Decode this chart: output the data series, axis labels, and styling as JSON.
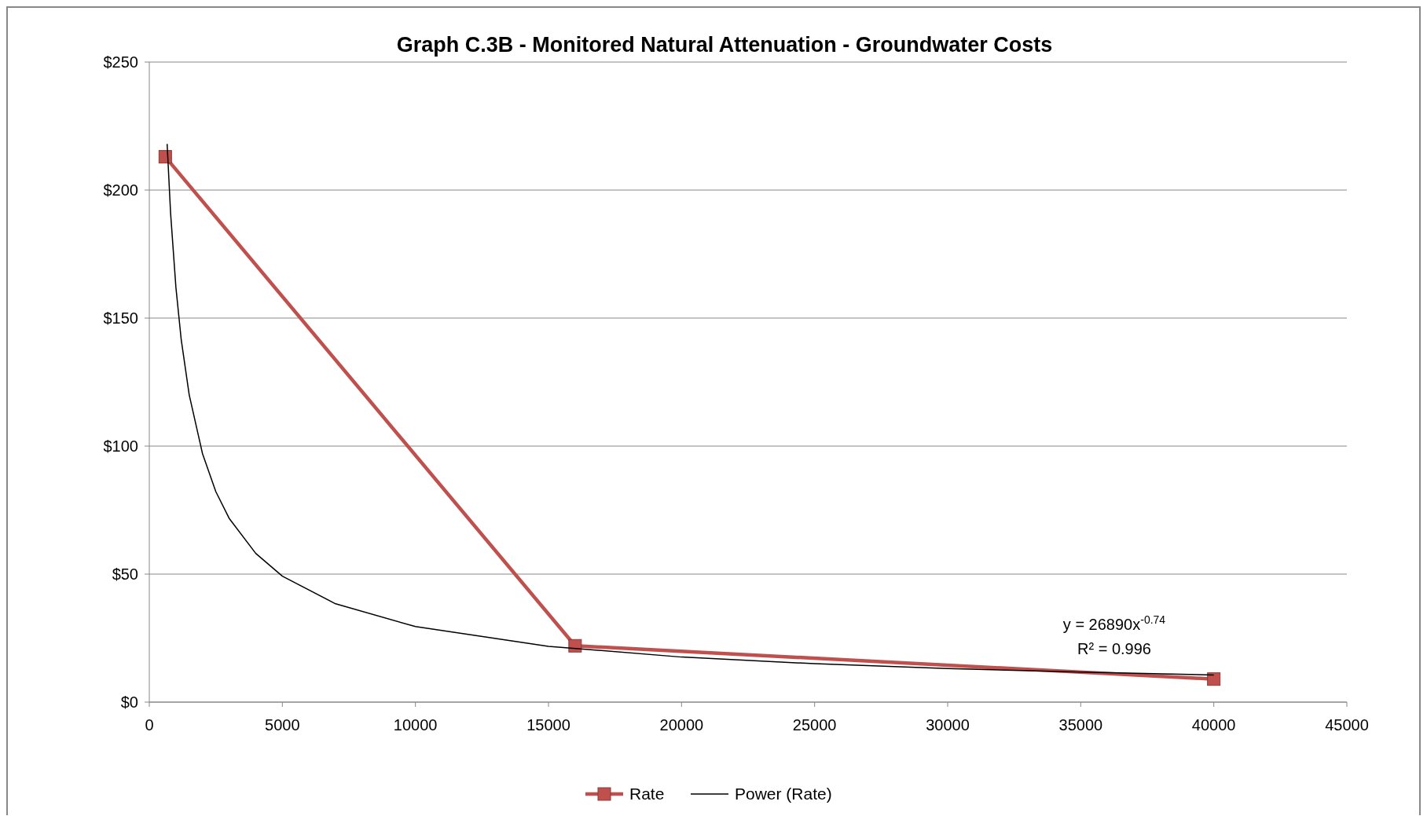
{
  "chart_data": {
    "type": "line",
    "title": "Graph C.3B - Monitored Natural Attenuation - Groundwater Costs",
    "series": [
      {
        "name": "Rate",
        "color": "#c0504d",
        "x": [
          600,
          16000,
          40000
        ],
        "values": [
          213,
          22,
          9
        ],
        "marker": "square"
      },
      {
        "name": "Power (Rate)",
        "color": "#000000",
        "marker": "none",
        "x": [
          670,
          800,
          1000,
          1200,
          1500,
          2000,
          2500,
          3000,
          4000,
          5000,
          7000,
          10000,
          15000,
          20000,
          25000,
          30000,
          35000,
          40000
        ],
        "values": [
          218,
          191,
          162,
          141.5,
          120,
          97,
          82.2,
          71.8,
          58.1,
          49.2,
          38.4,
          29.5,
          21.8,
          17.6,
          15.0,
          13.1,
          11.7,
          10.6
        ]
      }
    ],
    "xlim": [
      0,
      45000
    ],
    "xticks": [
      0,
      5000,
      10000,
      15000,
      20000,
      25000,
      30000,
      35000,
      40000,
      45000
    ],
    "ylim": [
      0,
      250
    ],
    "yticks": [
      {
        "value": 0,
        "label": "$0"
      },
      {
        "value": 50,
        "label": "$50"
      },
      {
        "value": 100,
        "label": "$100"
      },
      {
        "value": 150,
        "label": "$150"
      },
      {
        "value": 200,
        "label": "$200"
      },
      {
        "value": 250,
        "label": "$250"
      }
    ],
    "grid": "y",
    "legend": "bottom",
    "annotations": [
      "y = 26890x$^{-0.74}$",
      "R² = 0.996"
    ]
  }
}
